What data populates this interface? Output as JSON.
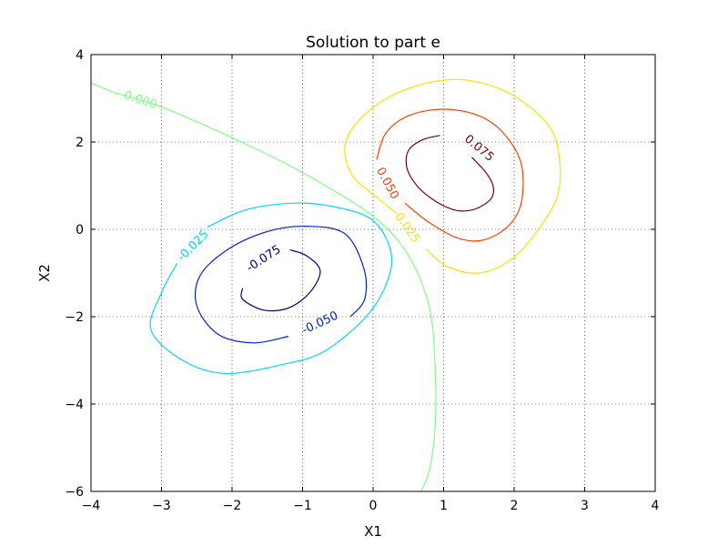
{
  "chart_data": {
    "type": "contour",
    "title": "Solution to part e",
    "xlabel": "X1",
    "ylabel": "X2",
    "xlim": [
      -4,
      4
    ],
    "ylim": [
      -6,
      4
    ],
    "grid": true,
    "grid_style": "dotted",
    "x_ticks": [
      -4,
      -3,
      -2,
      -1,
      0,
      1,
      2,
      3,
      4
    ],
    "x_tick_labels": [
      "−4",
      "−3",
      "−2",
      "−1",
      "0",
      "1",
      "2",
      "3",
      "4"
    ],
    "y_ticks": [
      -6,
      -4,
      -2,
      0,
      2,
      4
    ],
    "y_tick_labels": [
      "−6",
      "−4",
      "−2",
      "0",
      "2",
      "4"
    ],
    "levels": [
      {
        "value": 0.075,
        "label": "0.075",
        "color": "#7f0000",
        "label_at": [
          1.5,
          1.85
        ],
        "label_rotation": 40,
        "points": [
          [
            0.95,
            2.15
          ],
          [
            0.7,
            2.05
          ],
          [
            0.5,
            1.8
          ],
          [
            0.48,
            1.4
          ],
          [
            0.62,
            1.0
          ],
          [
            0.85,
            0.68
          ],
          [
            1.1,
            0.47
          ],
          [
            1.3,
            0.42
          ],
          [
            1.5,
            0.5
          ],
          [
            1.68,
            0.72
          ],
          [
            1.7,
            1.0
          ],
          [
            1.6,
            1.3
          ],
          [
            1.4,
            1.65
          ]
        ]
      },
      {
        "value": 0.05,
        "label": "0.050",
        "color": "#ff4000",
        "label_at": [
          0.2,
          1.05
        ],
        "label_rotation": 62,
        "points": [
          [
            0.05,
            1.6
          ],
          [
            0.18,
            2.2
          ],
          [
            0.5,
            2.6
          ],
          [
            1.0,
            2.75
          ],
          [
            1.5,
            2.6
          ],
          [
            1.85,
            2.2
          ],
          [
            2.1,
            1.5
          ],
          [
            2.1,
            0.6
          ],
          [
            1.9,
            0.05
          ],
          [
            1.55,
            -0.25
          ],
          [
            1.2,
            -0.2
          ],
          [
            0.8,
            0.15
          ],
          [
            0.45,
            0.6
          ]
        ]
      },
      {
        "value": 0.025,
        "label": "0.025",
        "color": "#ffe000",
        "label_at": [
          0.48,
          0.03
        ],
        "label_rotation": 55,
        "points": [
          [
            0.33,
            0.37
          ],
          [
            0.0,
            0.8
          ],
          [
            -0.3,
            1.25
          ],
          [
            -0.4,
            1.9
          ],
          [
            -0.2,
            2.5
          ],
          [
            0.25,
            3.05
          ],
          [
            0.85,
            3.38
          ],
          [
            1.4,
            3.4
          ],
          [
            2.0,
            3.05
          ],
          [
            2.5,
            2.35
          ],
          [
            2.65,
            1.5
          ],
          [
            2.6,
            0.7
          ],
          [
            2.3,
            -0.1
          ],
          [
            1.95,
            -0.7
          ],
          [
            1.5,
            -1.0
          ],
          [
            1.05,
            -0.85
          ],
          [
            0.75,
            -0.45
          ]
        ]
      },
      {
        "value": 0.0,
        "label": "0.000",
        "color": "#7fff7f",
        "label_at": [
          -3.3,
          2.95
        ],
        "label_rotation": 18,
        "points": [
          [
            -4.0,
            3.35
          ],
          [
            -3.7,
            3.15
          ],
          [
            -3.6,
            3.1
          ],
          [
            -3.0,
            2.8
          ],
          [
            -2.0,
            2.1
          ],
          [
            -1.0,
            1.3
          ],
          [
            0.0,
            0.3
          ],
          [
            0.5,
            -0.6
          ],
          [
            0.8,
            -1.8
          ],
          [
            0.88,
            -3.2
          ],
          [
            0.88,
            -4.5
          ],
          [
            0.8,
            -5.5
          ],
          [
            0.68,
            -6.0
          ]
        ]
      },
      {
        "value": -0.025,
        "label": "-0.025",
        "color": "#00d4ff",
        "label_at": [
          -2.55,
          -0.38
        ],
        "label_rotation": -45,
        "points": [
          [
            -2.35,
            0.05
          ],
          [
            -1.8,
            0.45
          ],
          [
            -1.1,
            0.6
          ],
          [
            -0.5,
            0.5
          ],
          [
            0.0,
            0.2
          ],
          [
            0.25,
            -0.5
          ],
          [
            0.2,
            -1.2
          ],
          [
            -0.1,
            -2.0
          ],
          [
            -0.7,
            -2.8
          ],
          [
            -1.3,
            -3.1
          ],
          [
            -2.1,
            -3.3
          ],
          [
            -2.7,
            -3.0
          ],
          [
            -3.15,
            -2.3
          ],
          [
            -3.0,
            -1.45
          ],
          [
            -2.78,
            -0.78
          ]
        ]
      },
      {
        "value": -0.05,
        "label": "-0.050",
        "color": "#0022cc",
        "label_at": [
          -0.75,
          -2.15
        ],
        "label_rotation": -25,
        "points": [
          [
            -0.32,
            -2.0
          ],
          [
            -0.12,
            -1.6
          ],
          [
            -0.13,
            -0.9
          ],
          [
            -0.4,
            -0.1
          ],
          [
            -0.95,
            0.07
          ],
          [
            -1.5,
            -0.05
          ],
          [
            -2.05,
            -0.45
          ],
          [
            -2.45,
            -1.05
          ],
          [
            -2.5,
            -1.75
          ],
          [
            -2.2,
            -2.4
          ],
          [
            -1.7,
            -2.6
          ],
          [
            -1.2,
            -2.45
          ]
        ]
      },
      {
        "value": -0.075,
        "label": "-0.075",
        "color": "#00007f",
        "label_at": [
          -1.55,
          -0.68
        ],
        "label_rotation": -33,
        "points": [
          [
            -1.18,
            -0.47
          ],
          [
            -0.95,
            -0.6
          ],
          [
            -0.75,
            -0.95
          ],
          [
            -0.9,
            -1.45
          ],
          [
            -1.2,
            -1.8
          ],
          [
            -1.55,
            -1.85
          ],
          [
            -1.85,
            -1.6
          ],
          [
            -1.85,
            -1.35
          ]
        ]
      }
    ]
  }
}
